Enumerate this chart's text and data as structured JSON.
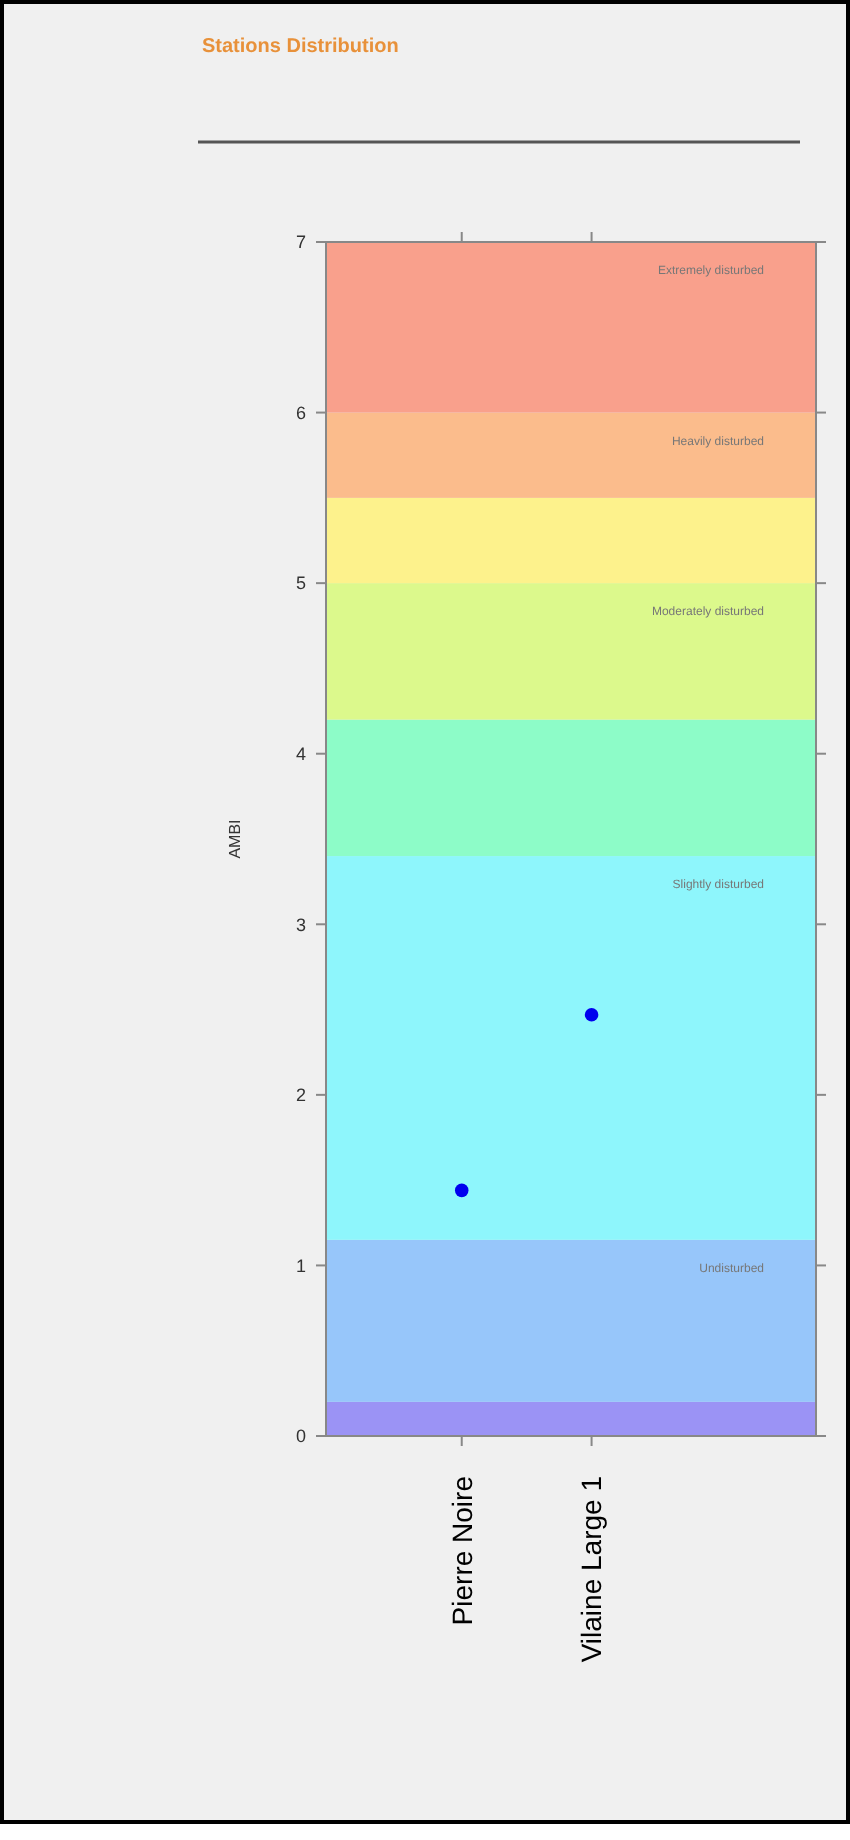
{
  "chart_data": {
    "type": "scatter",
    "title": "Stations Distribution",
    "ylabel": "AMBI",
    "categories": [
      "Pierre Noire",
      "Vilaine Large 1"
    ],
    "series": [
      {
        "color": "#0000ee",
        "values": [
          1.44,
          2.47
        ]
      }
    ],
    "marker": "circle",
    "grid": false,
    "ylim": [
      0,
      7
    ],
    "yticks": [
      0,
      1,
      2,
      3,
      4,
      5,
      6,
      7
    ],
    "bands": [
      {
        "axis": "y",
        "from": 0,
        "to": 0.2,
        "color": "#9b93f5"
      },
      {
        "axis": "y",
        "from": 0.2,
        "to": 1.15,
        "label": "Undisturbed",
        "color": "#97c6fa"
      },
      {
        "axis": "y",
        "from": 1.15,
        "to": 3.4,
        "label": "Slightly disturbed",
        "color": "#8ef6fc"
      },
      {
        "axis": "y",
        "from": 3.4,
        "to": 4.2,
        "color": "#8dfcc8"
      },
      {
        "axis": "y",
        "from": 4.2,
        "to": 5,
        "label": "Moderately disturbed",
        "color": "#dcf98c"
      },
      {
        "axis": "y",
        "from": 5,
        "to": 5.5,
        "color": "#fdf28c"
      },
      {
        "axis": "y",
        "from": 5.5,
        "to": 6,
        "label": "Heavily disturbed",
        "color": "#fbbc8c"
      },
      {
        "axis": "y",
        "from": 6,
        "to": 7,
        "label": "Extremely disturbed",
        "color": "#f9a08c"
      }
    ]
  }
}
